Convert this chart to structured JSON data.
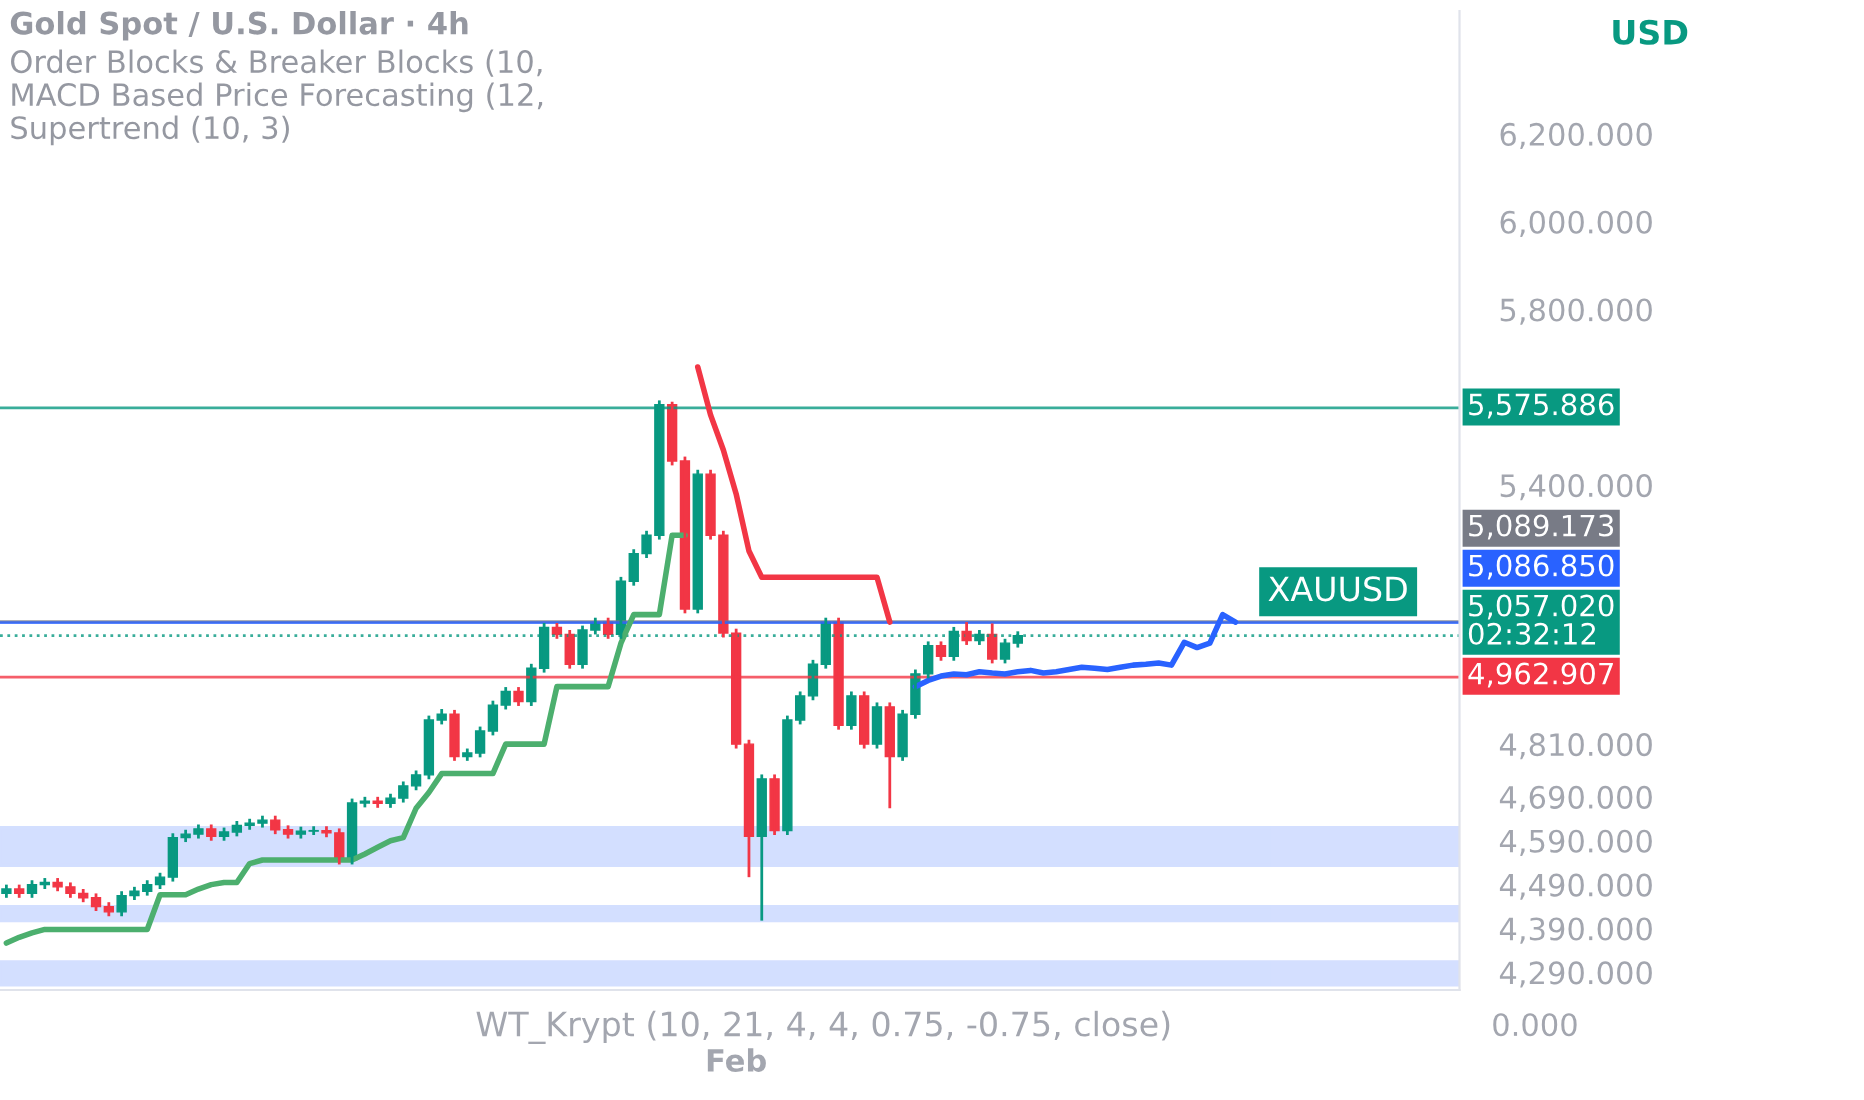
{
  "chart_data": {
    "type": "candlestick",
    "title": "Gold Spot / U.S. Dollar · 4h",
    "subtitle": "Order Blocks & Breaker Blocks (10,\nMACD Based Price Forecasting (12,\nSupertrend (10, 3)",
    "categories": [
      null,
      null,
      null,
      null,
      null,
      null,
      null,
      null,
      null,
      null,
      null,
      null,
      null,
      null,
      null,
      null,
      null,
      null,
      null,
      null,
      null,
      null,
      null,
      null,
      null,
      null,
      null,
      null,
      null,
      null,
      null,
      null,
      null,
      null,
      null,
      null,
      null,
      null,
      null,
      null,
      null,
      null,
      null,
      null,
      null,
      null,
      null,
      null,
      null,
      null,
      null,
      null,
      null,
      null,
      null,
      null,
      null,
      "Feb",
      null,
      null,
      null,
      null,
      null,
      null,
      null,
      null,
      null,
      null,
      null,
      null,
      null,
      null,
      null,
      null,
      null,
      null,
      null,
      null,
      null,
      null,
      null,
      null,
      null,
      null,
      null,
      null,
      null,
      null,
      null,
      null,
      null,
      null,
      null,
      null,
      null,
      null,
      null,
      null,
      null,
      null,
      null,
      null,
      null,
      null,
      null,
      null,
      null,
      null,
      null,
      null,
      null,
      null,
      null,
      null
    ],
    "ohlc": [
      [
        4470,
        4490,
        4460,
        4480
      ],
      [
        4480,
        4490,
        4460,
        4470
      ],
      [
        4470,
        4500,
        4460,
        4490
      ],
      [
        4490,
        4505,
        4480,
        4495
      ],
      [
        4495,
        4505,
        4475,
        4485
      ],
      [
        4485,
        4495,
        4460,
        4470
      ],
      [
        4470,
        4480,
        4450,
        4460
      ],
      [
        4460,
        4470,
        4430,
        4440
      ],
      [
        4440,
        4450,
        4418,
        4428
      ],
      [
        4428,
        4475,
        4418,
        4465
      ],
      [
        4465,
        4485,
        4455,
        4475
      ],
      [
        4475,
        4500,
        4465,
        4490
      ],
      [
        4490,
        4517,
        4480,
        4507
      ],
      [
        4507,
        4607,
        4497,
        4597
      ],
      [
        4597,
        4615,
        4587,
        4605
      ],
      [
        4605,
        4627,
        4595,
        4617
      ],
      [
        4617,
        4627,
        4590,
        4600
      ],
      [
        4600,
        4620,
        4590,
        4610
      ],
      [
        4610,
        4635,
        4600,
        4625
      ],
      [
        4625,
        4640,
        4615,
        4630
      ],
      [
        4630,
        4647,
        4620,
        4637
      ],
      [
        4637,
        4647,
        4605,
        4615
      ],
      [
        4615,
        4625,
        4595,
        4605
      ],
      [
        4605,
        4622,
        4595,
        4612
      ],
      [
        4612,
        4623,
        4603,
        4613
      ],
      [
        4613,
        4623,
        4598,
        4608
      ],
      [
        4608,
        4618,
        4536,
        4546
      ],
      [
        4546,
        4686,
        4536,
        4676
      ],
      [
        4676,
        4690,
        4666,
        4680
      ],
      [
        4680,
        4690,
        4665,
        4675
      ],
      [
        4675,
        4697,
        4665,
        4687
      ],
      [
        4687,
        4725,
        4677,
        4715
      ],
      [
        4715,
        4750,
        4705,
        4740
      ],
      [
        4740,
        4875,
        4730,
        4865
      ],
      [
        4865,
        4890,
        4855,
        4878
      ],
      [
        4878,
        4888,
        4772,
        4782
      ],
      [
        4782,
        4800,
        4772,
        4790
      ],
      [
        4790,
        4850,
        4780,
        4840
      ],
      [
        4840,
        4909,
        4830,
        4899
      ],
      [
        4899,
        4940,
        4889,
        4930
      ],
      [
        4930,
        4940,
        4897,
        4907
      ],
      [
        4907,
        4993,
        4897,
        4983
      ],
      [
        4983,
        5086,
        4973,
        5076
      ],
      [
        5076,
        5086,
        5050,
        5060
      ],
      [
        5060,
        5070,
        4982,
        4992
      ],
      [
        4992,
        5080,
        4982,
        5070
      ],
      [
        5070,
        5098,
        5060,
        5088
      ],
      [
        5088,
        5098,
        5050,
        5060
      ],
      [
        5060,
        5191,
        5050,
        5181
      ],
      [
        5181,
        5254,
        5171,
        5244
      ],
      [
        5244,
        5296,
        5234,
        5286
      ],
      [
        5286,
        5593,
        5276,
        5583
      ],
      [
        5583,
        5590,
        5445,
        5455
      ],
      [
        5455,
        5465,
        5108,
        5118
      ],
      [
        5118,
        5435,
        5108,
        5425
      ],
      [
        5425,
        5435,
        5276,
        5286
      ],
      [
        5286,
        5296,
        5053,
        5063
      ],
      [
        5063,
        5073,
        4800,
        4810
      ],
      [
        4810,
        4820,
        4507,
        4600
      ],
      [
        4600,
        4741,
        4408,
        4731
      ],
      [
        4731,
        4741,
        4603,
        4613
      ],
      [
        4613,
        4875,
        4603,
        4865
      ],
      [
        4865,
        4930,
        4855,
        4920
      ],
      [
        4920,
        5002,
        4910,
        4992
      ],
      [
        4992,
        5098,
        4982,
        5088
      ],
      [
        5088,
        5098,
        4843,
        4853
      ],
      [
        4853,
        4930,
        4843,
        4920
      ],
      [
        4920,
        4930,
        4800,
        4810
      ],
      [
        4810,
        4905,
        4800,
        4895
      ],
      [
        4895,
        4905,
        4664,
        4782
      ],
      [
        4782,
        4888,
        4772,
        4878
      ],
      [
        4878,
        4980,
        4868,
        4970
      ],
      [
        4970,
        5044,
        4960,
        5034
      ],
      [
        5034,
        5044,
        5000,
        5010
      ],
      [
        5010,
        5077,
        5000,
        5067
      ],
      [
        5067,
        5088,
        5036,
        5046
      ],
      [
        5046,
        5070,
        5036,
        5060
      ],
      [
        5060,
        5085,
        4994,
        5004
      ],
      [
        5004,
        5050,
        4994,
        5040
      ],
      [
        5040,
        5067,
        5030,
        5057.02
      ],
      null,
      null,
      null,
      null,
      null,
      null,
      null,
      null,
      null,
      null,
      null,
      null,
      null,
      null,
      null,
      null,
      null,
      null,
      null,
      null,
      null,
      null,
      null,
      null,
      null,
      null,
      null,
      null,
      null,
      null,
      null,
      null,
      null,
      null
    ],
    "colors": [
      "#089981",
      "#f23645",
      "#089981",
      "#089981",
      "#f23645",
      "#f23645",
      "#f23645",
      "#f23645",
      "#f23645",
      "#089981",
      "#089981",
      "#089981",
      "#089981",
      "#089981",
      "#089981",
      "#089981",
      "#f23645",
      "#089981",
      "#089981",
      "#089981",
      "#089981",
      "#f23645",
      "#f23645",
      "#089981",
      "#089981",
      "#f23645",
      "#f23645",
      "#089981",
      "#089981",
      "#f23645",
      "#089981",
      "#089981",
      "#089981",
      "#089981",
      "#089981",
      "#f23645",
      "#089981",
      "#089981",
      "#089981",
      "#089981",
      "#f23645",
      "#089981",
      "#089981",
      "#f23645",
      "#f23645",
      "#089981",
      "#089981",
      "#f23645",
      "#089981",
      "#089981",
      "#089981",
      "#089981",
      "#f23645",
      "#f23645",
      "#089981",
      "#f23645",
      "#f23645",
      "#f23645",
      "#f23645",
      "#089981",
      "#f23645",
      "#089981",
      "#089981",
      "#089981",
      "#089981",
      "#f23645",
      "#089981",
      "#f23645",
      "#089981",
      "#f23645",
      "#089981",
      "#089981",
      "#089981",
      "#f23645",
      "#089981",
      "#f23645",
      "#089981",
      "#f23645",
      "#089981",
      "#089981",
      null,
      null,
      null,
      null,
      null,
      null,
      null,
      null,
      null,
      null,
      null,
      null,
      null,
      null,
      null,
      null,
      null,
      null,
      null,
      null,
      null,
      null,
      null,
      null,
      null,
      null,
      null,
      null,
      null,
      null,
      null,
      null,
      null,
      null
    ],
    "series": [
      {
        "type": "line",
        "color": "#4caf6e",
        "values": [
          4357,
          4370,
          4380,
          4388,
          4388,
          4388,
          4388,
          4388,
          4388,
          4388,
          4388,
          4388,
          4467,
          4467,
          4467,
          4480,
          4490,
          4495,
          4495,
          4538,
          4546,
          4546,
          4546,
          4546,
          4546,
          4546,
          4546,
          4546,
          4560,
          4575,
          4590,
          4597,
          4664,
          4700,
          4743,
          4743,
          4743,
          4743,
          4743,
          4810,
          4810,
          4810,
          4810,
          4941,
          4941,
          4941,
          4941,
          4941,
          5040,
          5105,
          5105,
          5105,
          5286,
          5286,
          null,
          null,
          null,
          null,
          null,
          null,
          null,
          null,
          null,
          null,
          null,
          null,
          null,
          null,
          null,
          null,
          null,
          null,
          null,
          null,
          null,
          null,
          null,
          null,
          null,
          null,
          null,
          null,
          null,
          null,
          null,
          null,
          null,
          null,
          null,
          null,
          null,
          null,
          null,
          null,
          null,
          null,
          null,
          null,
          null,
          null,
          null,
          null,
          null,
          null,
          null,
          null,
          null,
          null,
          null,
          null,
          null,
          null,
          null,
          null
        ]
      },
      {
        "type": "line",
        "color": "#f23645",
        "values": [
          null,
          null,
          null,
          null,
          null,
          null,
          null,
          null,
          null,
          null,
          null,
          null,
          null,
          null,
          null,
          null,
          null,
          null,
          null,
          null,
          null,
          null,
          null,
          null,
          null,
          null,
          null,
          null,
          null,
          null,
          null,
          null,
          null,
          null,
          null,
          null,
          null,
          null,
          null,
          null,
          null,
          null,
          null,
          null,
          null,
          null,
          null,
          null,
          null,
          null,
          null,
          null,
          null,
          null,
          5669,
          5560,
          5480,
          5380,
          5250,
          5190,
          5190,
          5190,
          5190,
          5190,
          5190,
          5190,
          5190,
          5190,
          5190,
          5088,
          null,
          null,
          null,
          null,
          null,
          null,
          null,
          null,
          null,
          null,
          null,
          null,
          null,
          null,
          null,
          null,
          null,
          null,
          null,
          null,
          null,
          null,
          null,
          null,
          null,
          null,
          null,
          null,
          null,
          null,
          null,
          null,
          null,
          null,
          null,
          null,
          null,
          null,
          null,
          null,
          null,
          null,
          null,
          null
        ]
      },
      {
        "type": "line",
        "color": "#2962ff",
        "values": [
          null,
          null,
          null,
          null,
          null,
          null,
          null,
          null,
          null,
          null,
          null,
          null,
          null,
          null,
          null,
          null,
          null,
          null,
          null,
          null,
          null,
          null,
          null,
          null,
          null,
          null,
          null,
          null,
          null,
          null,
          null,
          null,
          null,
          null,
          null,
          null,
          null,
          null,
          null,
          null,
          null,
          null,
          null,
          null,
          null,
          null,
          null,
          null,
          null,
          null,
          null,
          null,
          null,
          null,
          null,
          null,
          null,
          null,
          null,
          null,
          null,
          null,
          null,
          null,
          null,
          null,
          null,
          null,
          null,
          null,
          null,
          4941,
          4955,
          4965,
          4970,
          4968,
          4975,
          4972,
          4970,
          4975,
          4978,
          4972,
          4975,
          4980,
          4985,
          4983,
          4980,
          4985,
          4990,
          4992,
          4995,
          4990,
          5042,
          5030,
          5040,
          5105,
          5088,
          null,
          null,
          null,
          null,
          null,
          null,
          null,
          null,
          null,
          null,
          null,
          null,
          null,
          null,
          null,
          null,
          null
        ]
      }
    ],
    "ylim": [
      4250,
      6480
    ],
    "yticks": [
      {
        "value": 6200,
        "label": "6,200.000"
      },
      {
        "value": 6000,
        "label": "6,000.000"
      },
      {
        "value": 5800,
        "label": "5,800.000"
      },
      {
        "value": 5400,
        "label": "5,400.000"
      },
      {
        "value": 4810,
        "label": "4,810.000"
      },
      {
        "value": 4690,
        "label": "4,690.000"
      },
      {
        "value": 4590,
        "label": "4,590.000"
      },
      {
        "value": 4490,
        "label": "4,490.000"
      },
      {
        "value": 4390,
        "label": "4,390.000"
      },
      {
        "value": 4290,
        "label": "4,290.000"
      }
    ],
    "ref_lines": [
      {
        "axis": "y",
        "value": 5575.886,
        "label": "5,575.886",
        "color": "#089981",
        "line_style": "solid"
      },
      {
        "axis": "y",
        "value": 5089.173,
        "label": "5,089.173",
        "color": "#787b86",
        "line_style": "solid"
      },
      {
        "axis": "y",
        "value": 5086.85,
        "label": "5,086.850",
        "color": "#2962ff",
        "line_style": "solid"
      },
      {
        "axis": "y",
        "value": 5057.02,
        "label": "5,057.020\n02:32:12",
        "color": "#089981",
        "line_style": "dotted"
      },
      {
        "axis": "y",
        "value": 4962.907,
        "label": "4,962.907",
        "color": "#f23645",
        "line_style": "solid"
      }
    ],
    "bands": [
      {
        "axis": "y",
        "from": 4534,
        "to": 4620,
        "color": "#2962ff"
      },
      {
        "axis": "y",
        "from": 4408,
        "to": 4440,
        "color": "#2962ff"
      },
      {
        "axis": "y",
        "from": 4262,
        "to": 4314,
        "color": "#2962ff"
      }
    ],
    "annotations": [
      "USD",
      "XAUUSD",
      "WT_Krypt (10, 21, 4, 4, 0.75, -0.75, close)",
      "0.000"
    ]
  }
}
